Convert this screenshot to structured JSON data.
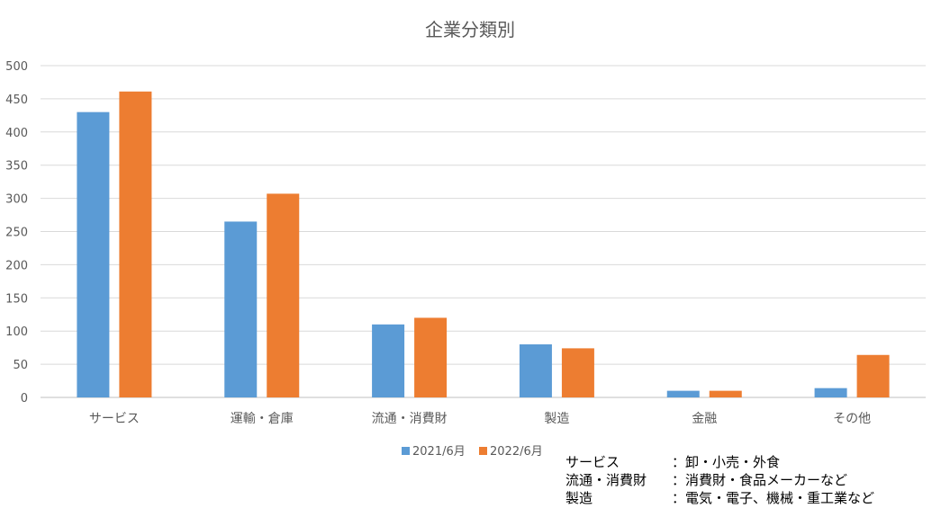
{
  "chart_data": {
    "type": "bar",
    "title": "企業分類別",
    "categories": [
      "サービス",
      "運輸・倉庫",
      "流通・消費財",
      "製造",
      "金融",
      "その他"
    ],
    "series": [
      {
        "name": "2021/6月",
        "color": "#5b9bd5",
        "values": [
          430,
          265,
          110,
          80,
          10,
          14
        ]
      },
      {
        "name": "2022/6月",
        "color": "#ed7d31",
        "values": [
          461,
          307,
          120,
          74,
          10,
          64
        ]
      }
    ],
    "ylim": [
      0,
      500
    ],
    "yticks": [
      0,
      50,
      100,
      150,
      200,
      250,
      300,
      350,
      400,
      450,
      500
    ],
    "grid": true,
    "legend": "bottom"
  },
  "notes": [
    {
      "key": "サービス",
      "value": "：卸・小売・外食"
    },
    {
      "key": "流通・消費財",
      "value": "：消費財・食品メーカーなど"
    },
    {
      "key": "製造",
      "value": "：電気・電子、機械・重工業など"
    }
  ]
}
